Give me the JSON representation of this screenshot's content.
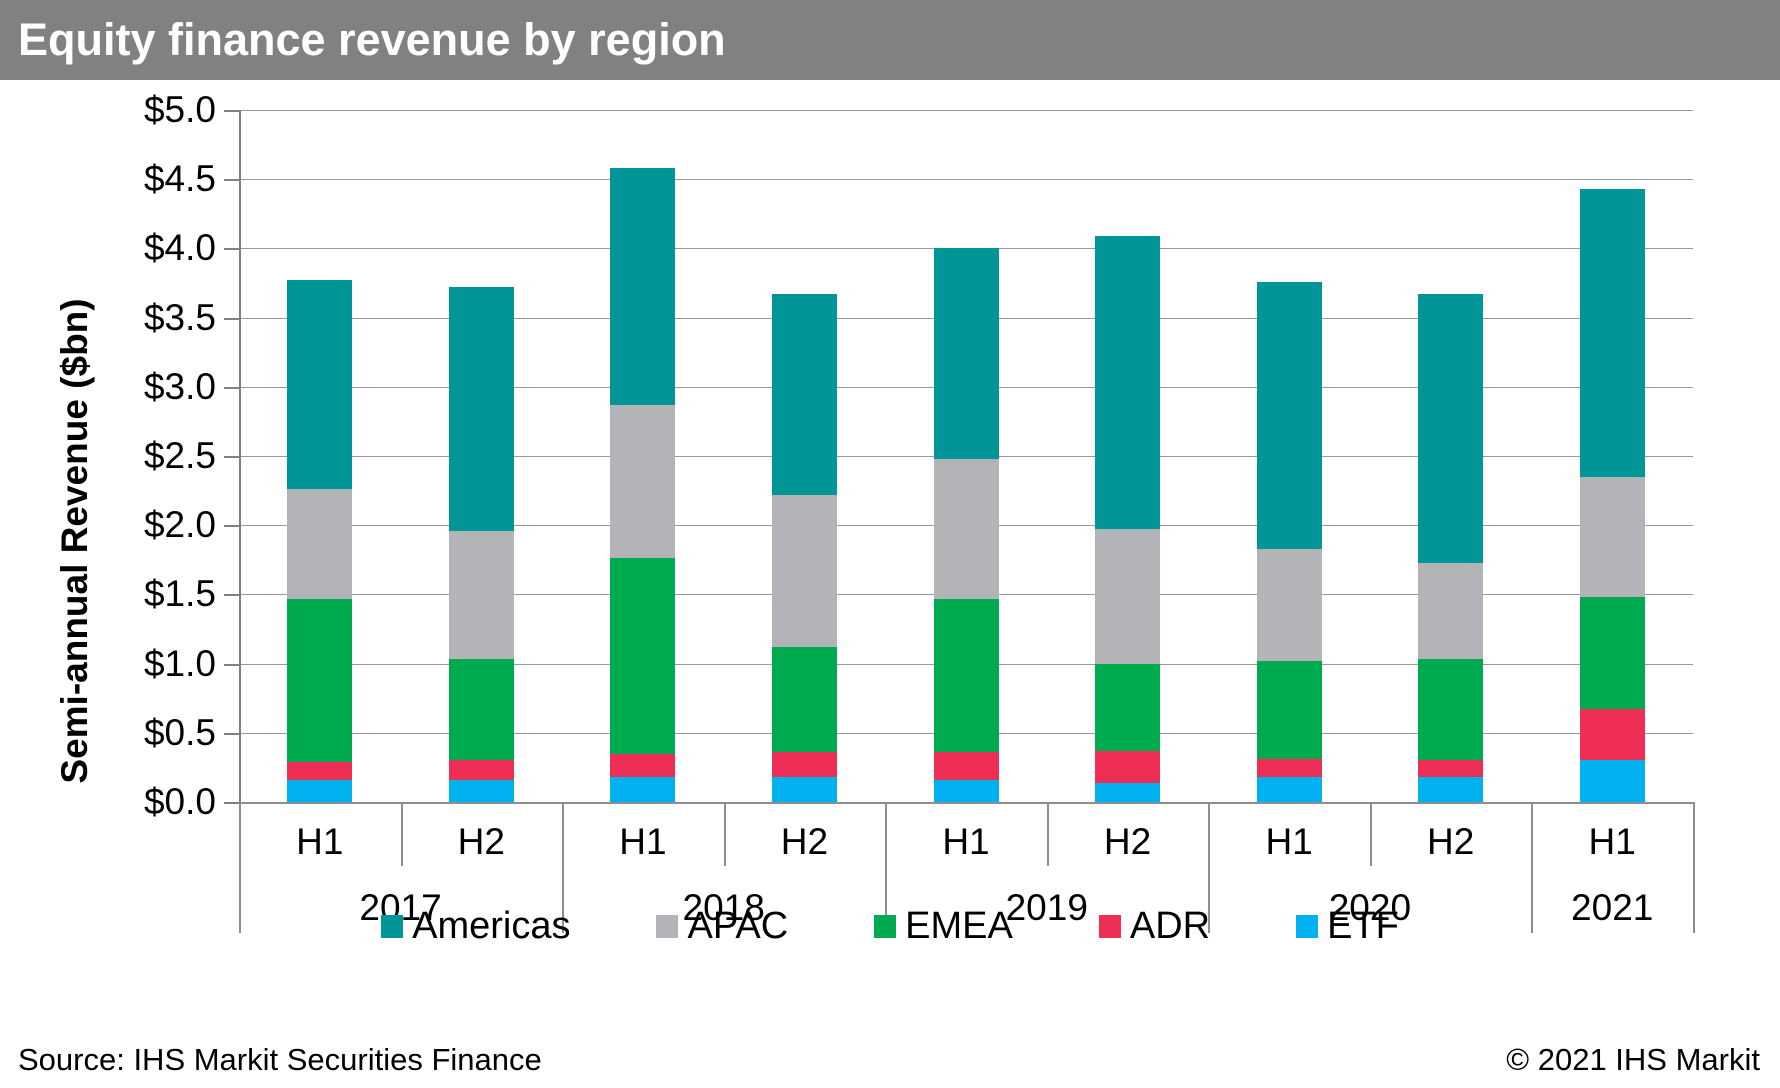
{
  "header": {
    "title": "Equity finance revenue by region"
  },
  "colors": {
    "title_bar": "#7F8182",
    "americas": "#009697",
    "apac": "#B2B4B7",
    "emea": "#00AB4F",
    "adr": "#EE2E55",
    "etf": "#00B1F0"
  },
  "chart_data": {
    "type": "bar",
    "stacked": true,
    "title": "Equity finance revenue by region",
    "ylabel": "Semi-annual Revenue ($bn)",
    "ylim": [
      0,
      5
    ],
    "ytick_step": 0.5,
    "ytick_labels": [
      "$0.0",
      "$0.5",
      "$1.0",
      "$1.5",
      "$2.0",
      "$2.5",
      "$3.0",
      "$3.5",
      "$4.0",
      "$4.5",
      "$5.0"
    ],
    "grid": true,
    "legend_position": "bottom",
    "legend_order": [
      "Americas",
      "APAC",
      "EMEA",
      "ADR",
      "ETF"
    ],
    "groups": [
      {
        "year": "2017",
        "halves": [
          "H1",
          "H2"
        ]
      },
      {
        "year": "2018",
        "halves": [
          "H1",
          "H2"
        ]
      },
      {
        "year": "2019",
        "halves": [
          "H1",
          "H2"
        ]
      },
      {
        "year": "2020",
        "halves": [
          "H1",
          "H2"
        ]
      },
      {
        "year": "2021",
        "halves": [
          "H1"
        ]
      }
    ],
    "categories": [
      "2017 H1",
      "2017 H2",
      "2018 H1",
      "2018 H2",
      "2019 H1",
      "2019 H2",
      "2020 H1",
      "2020 H2",
      "2021 H1"
    ],
    "stack_order_bottom_to_top": [
      "ETF",
      "ADR",
      "EMEA",
      "APAC",
      "Americas"
    ],
    "series": [
      {
        "name": "ETF",
        "color_key": "etf",
        "values": [
          0.16,
          0.16,
          0.18,
          0.18,
          0.16,
          0.14,
          0.18,
          0.18,
          0.3
        ]
      },
      {
        "name": "ADR",
        "color_key": "adr",
        "values": [
          0.13,
          0.14,
          0.17,
          0.18,
          0.2,
          0.23,
          0.13,
          0.12,
          0.37
        ]
      },
      {
        "name": "EMEA",
        "color_key": "emea",
        "values": [
          1.18,
          0.73,
          1.41,
          0.76,
          1.11,
          0.63,
          0.71,
          0.73,
          0.81
        ]
      },
      {
        "name": "APAC",
        "color_key": "apac",
        "values": [
          0.79,
          0.93,
          1.11,
          1.1,
          1.01,
          0.97,
          0.81,
          0.7,
          0.87
        ]
      },
      {
        "name": "Americas",
        "color_key": "americas",
        "values": [
          1.51,
          1.76,
          1.71,
          1.45,
          1.52,
          2.12,
          1.93,
          1.94,
          2.08
        ]
      }
    ],
    "totals": [
      3.77,
      3.72,
      4.58,
      3.67,
      4.0,
      4.09,
      3.76,
      3.67,
      4.43
    ]
  },
  "footer": {
    "source": "Source: IHS Markit Securities Finance",
    "copyright": "© 2021 IHS Markit"
  }
}
